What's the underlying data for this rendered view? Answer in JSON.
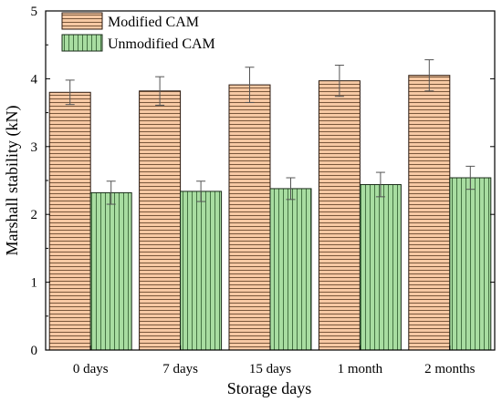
{
  "chart_data": {
    "type": "bar",
    "categories": [
      "0 days",
      "7 days",
      "15 days",
      "1 month",
      "2 months"
    ],
    "series": [
      {
        "name": "Modified CAM",
        "values": [
          3.8,
          3.82,
          3.91,
          3.97,
          4.05
        ],
        "errors": [
          0.18,
          0.21,
          0.26,
          0.23,
          0.23
        ],
        "color": "#F7C9A4",
        "stroke": "#2b1a10",
        "pattern": "horizontal-lines"
      },
      {
        "name": "Unmodified CAM",
        "values": [
          2.32,
          2.34,
          2.38,
          2.44,
          2.54
        ],
        "errors": [
          0.17,
          0.15,
          0.16,
          0.18,
          0.17
        ],
        "color": "#A8DDA1",
        "stroke": "#1a2b1a",
        "pattern": "vertical-lines"
      }
    ],
    "xlabel": "Storage days",
    "ylabel": "Marshall stability (kN)",
    "ylim": [
      0,
      5
    ],
    "yticks": [
      "0",
      "1",
      "2",
      "3",
      "4",
      "5"
    ],
    "legend": "top-left",
    "grid": false
  }
}
